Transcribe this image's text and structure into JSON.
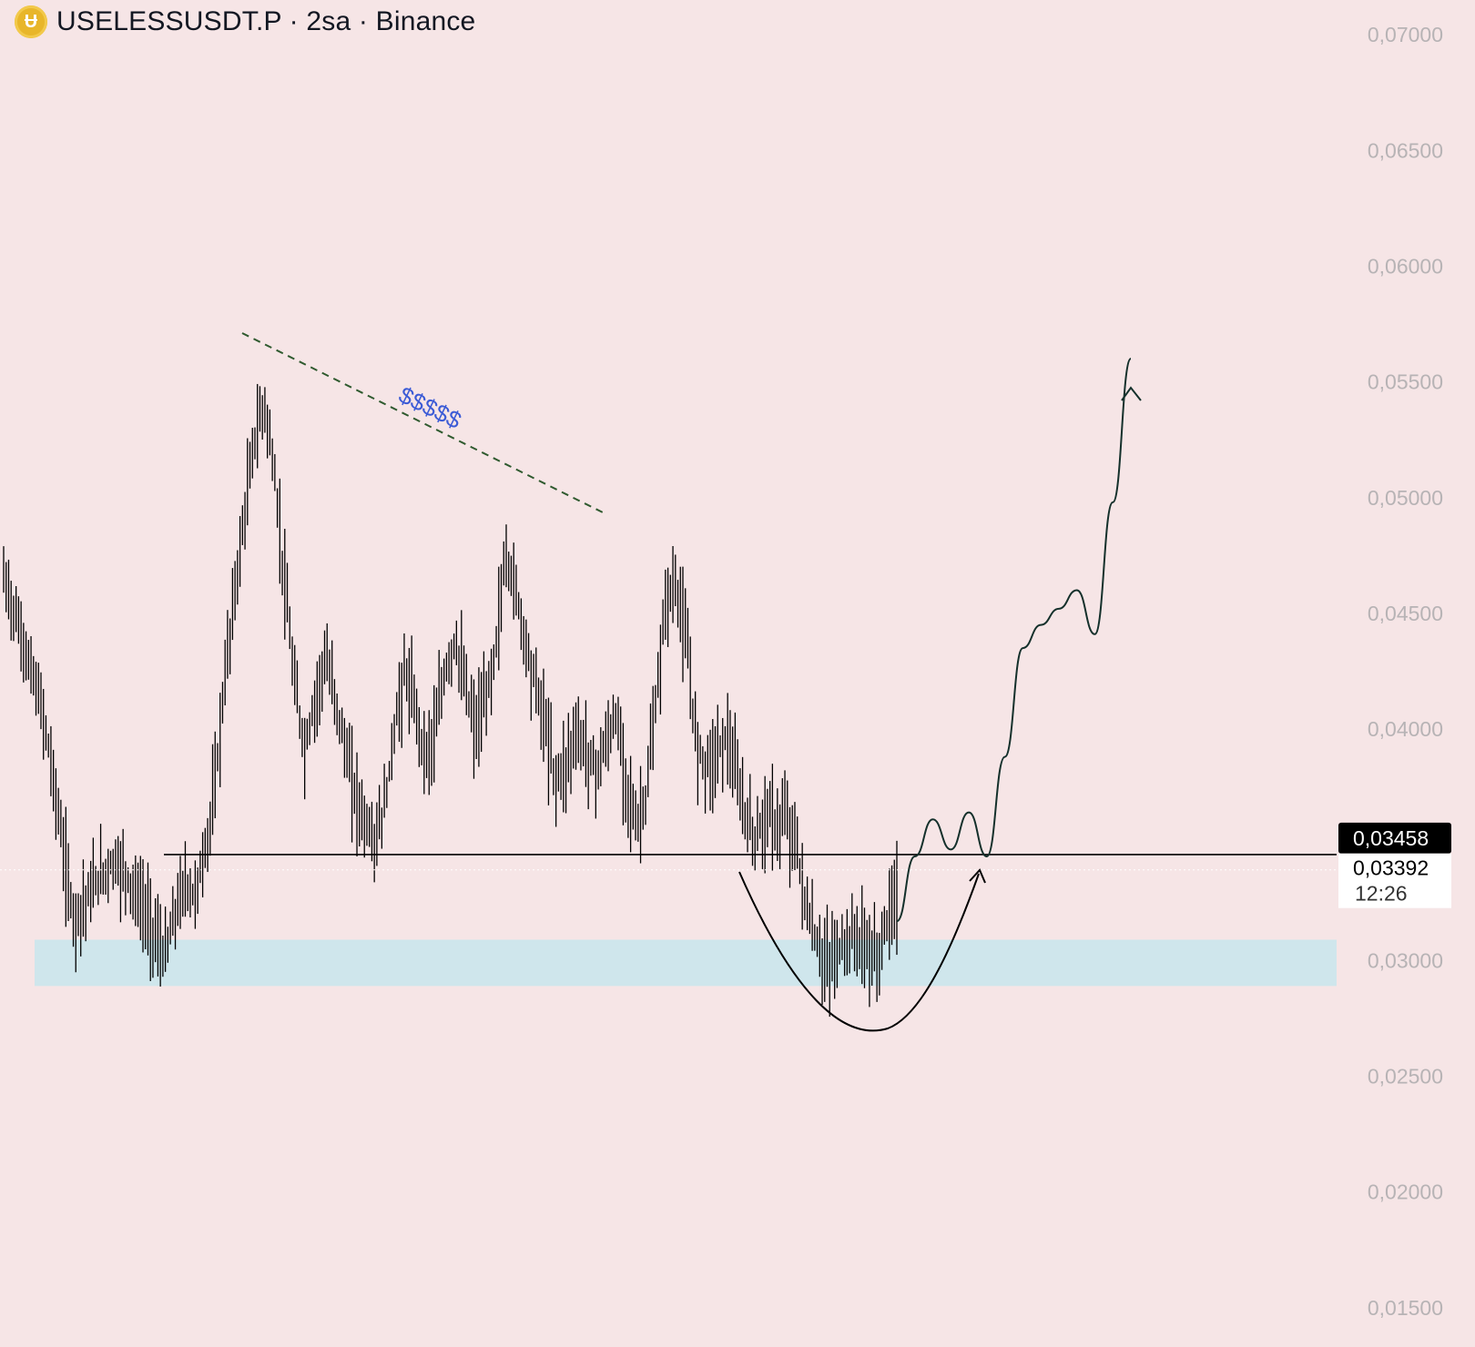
{
  "header": {
    "title": "USELESSUSDT.P · 2sa · Binance"
  },
  "price_axis": {
    "ticks": [
      "0,07000",
      "0,06500",
      "0,06000",
      "0,05500",
      "0,05000",
      "0,04500",
      "0,04000",
      "0,03000",
      "0,02500",
      "0,02000",
      "0,01500"
    ]
  },
  "price_tags": {
    "level_label": "0,03458",
    "last_price_label": "0,03392",
    "countdown": "12:26"
  },
  "annotation": {
    "text": "$$$$$"
  },
  "colors": {
    "background": "#f6e5e6",
    "candles": "#000000",
    "support_zone": "#cfe6ec",
    "trendline": "#2f5a2f",
    "annotation_text": "#3b5bd6",
    "projection": "#14302b"
  },
  "chart_data": {
    "type": "line",
    "title": "USELESSUSDT.P · 2sa · Binance",
    "y_ticks": [
      0.07,
      0.065,
      0.06,
      0.055,
      0.05,
      0.045,
      0.04,
      0.03,
      0.025,
      0.02,
      0.015
    ],
    "ylim": [
      0.0135,
      0.0715
    ],
    "price_series": [
      0.0465,
      0.0452,
      0.0436,
      0.0421,
      0.0405,
      0.0378,
      0.0345,
      0.0318,
      0.0325,
      0.0332,
      0.0338,
      0.0343,
      0.0339,
      0.033,
      0.0322,
      0.0312,
      0.0301,
      0.0318,
      0.0333,
      0.0328,
      0.0345,
      0.0372,
      0.042,
      0.0458,
      0.0492,
      0.0525,
      0.0541,
      0.0509,
      0.0462,
      0.0418,
      0.0391,
      0.0412,
      0.043,
      0.0415,
      0.0392,
      0.0372,
      0.036,
      0.0351,
      0.0367,
      0.0402,
      0.0425,
      0.0409,
      0.0389,
      0.0398,
      0.0425,
      0.0438,
      0.0418,
      0.0399,
      0.0411,
      0.0434,
      0.0475,
      0.0461,
      0.0438,
      0.042,
      0.0401,
      0.0378,
      0.0385,
      0.0398,
      0.0392,
      0.0382,
      0.0393,
      0.0405,
      0.038,
      0.0358,
      0.037,
      0.041,
      0.0456,
      0.0462,
      0.0438,
      0.0395,
      0.0385,
      0.0389,
      0.0398,
      0.0378,
      0.0361,
      0.0352,
      0.0365,
      0.0357,
      0.0362,
      0.0349,
      0.0322,
      0.0307,
      0.0298,
      0.0303,
      0.0308,
      0.031,
      0.0305,
      0.03,
      0.0316,
      0.033
    ],
    "horizontal_level": 0.03458,
    "last_price": 0.03392,
    "support_zone": [
      0.0289,
      0.0309
    ],
    "projection_path": [
      0.0317,
      0.0345,
      0.0361,
      0.0348,
      0.0364,
      0.0345,
      0.0388,
      0.0435,
      0.0445,
      0.0452,
      0.046,
      0.0441,
      0.0498,
      0.056
    ]
  }
}
